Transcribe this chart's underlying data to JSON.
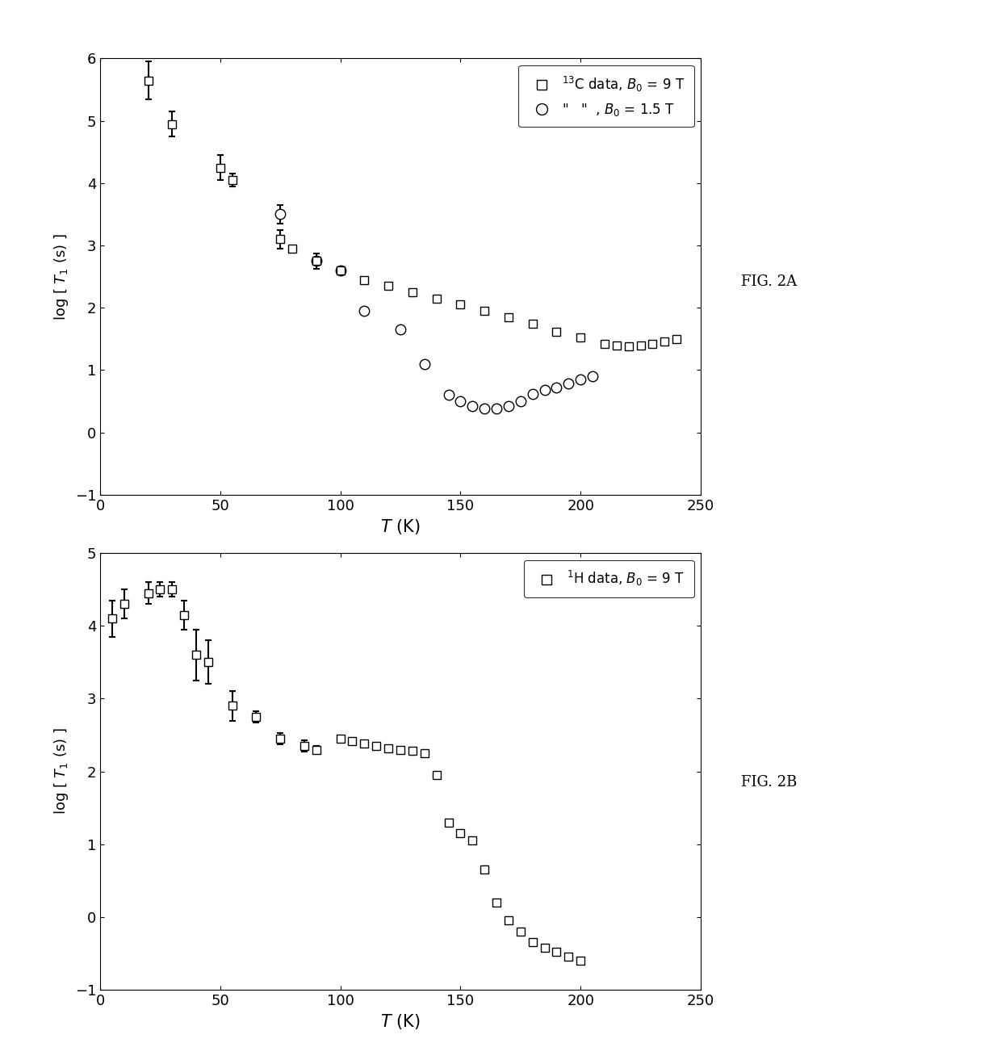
{
  "fig2A": {
    "xlabel": "$T$ (K)",
    "ylabel": "log [ $T_1$ (s) ]",
    "xlim": [
      0,
      250
    ],
    "ylim": [
      -1,
      6
    ],
    "yticks": [
      -1,
      0,
      1,
      2,
      3,
      4,
      5,
      6
    ],
    "xticks": [
      0,
      50,
      100,
      150,
      200,
      250
    ],
    "sq_x": [
      20,
      30,
      50,
      55,
      75,
      80,
      90,
      100,
      110,
      120,
      130,
      140,
      150,
      160,
      170,
      180,
      190,
      200,
      210,
      215,
      220,
      225,
      230,
      235,
      240
    ],
    "sq_y": [
      5.65,
      4.95,
      4.25,
      4.05,
      3.1,
      2.95,
      2.75,
      2.6,
      2.45,
      2.35,
      2.25,
      2.15,
      2.05,
      1.95,
      1.85,
      1.75,
      1.62,
      1.52,
      1.42,
      1.4,
      1.38,
      1.4,
      1.42,
      1.46,
      1.5
    ],
    "sq_yerr": [
      0.3,
      0.2,
      0.2,
      0.1,
      0.15,
      0.0,
      0.0,
      0.0,
      0.0,
      0.0,
      0.0,
      0.0,
      0.0,
      0.0,
      0.0,
      0.0,
      0.0,
      0.0,
      0.0,
      0.0,
      0.0,
      0.0,
      0.0,
      0.0,
      0.0
    ],
    "circ_x": [
      75,
      90,
      100,
      110,
      125,
      135,
      145,
      150,
      155,
      160,
      165,
      170,
      175,
      180,
      185,
      190,
      195,
      200,
      205
    ],
    "circ_y": [
      3.5,
      2.75,
      2.6,
      1.95,
      1.65,
      1.1,
      0.6,
      0.5,
      0.42,
      0.38,
      0.38,
      0.42,
      0.5,
      0.62,
      0.68,
      0.72,
      0.78,
      0.85,
      0.9
    ],
    "circ_yerr": [
      0.15,
      0.12,
      0.0,
      0.0,
      0.0,
      0.0,
      0.0,
      0.0,
      0.0,
      0.0,
      0.0,
      0.0,
      0.0,
      0.0,
      0.0,
      0.0,
      0.0,
      0.0,
      0.0
    ]
  },
  "fig2B": {
    "xlabel": "$T$ (K)",
    "ylabel": "log [ $T_1$ (s) ]",
    "xlim": [
      0,
      250
    ],
    "ylim": [
      -1,
      5
    ],
    "yticks": [
      -1,
      0,
      1,
      2,
      3,
      4,
      5
    ],
    "xticks": [
      0,
      50,
      100,
      150,
      200,
      250
    ],
    "sq_x": [
      5,
      10,
      20,
      25,
      30,
      35,
      40,
      45,
      55,
      65,
      75,
      85,
      90,
      100,
      105,
      110,
      115,
      120,
      125,
      130,
      135,
      140,
      145,
      150,
      155,
      160,
      165,
      170,
      175,
      180,
      185,
      190,
      195,
      200
    ],
    "sq_y": [
      4.1,
      4.3,
      4.45,
      4.5,
      4.5,
      4.15,
      3.6,
      3.5,
      2.9,
      2.75,
      2.45,
      2.35,
      2.3,
      2.45,
      2.42,
      2.38,
      2.35,
      2.32,
      2.3,
      2.28,
      2.25,
      1.95,
      1.3,
      1.15,
      1.05,
      0.65,
      0.2,
      -0.05,
      -0.2,
      -0.35,
      -0.42,
      -0.48,
      -0.55,
      -0.6
    ],
    "sq_yerr": [
      0.25,
      0.2,
      0.15,
      0.1,
      0.1,
      0.2,
      0.35,
      0.3,
      0.2,
      0.08,
      0.08,
      0.08,
      0.05,
      0.0,
      0.0,
      0.0,
      0.0,
      0.0,
      0.0,
      0.0,
      0.0,
      0.0,
      0.0,
      0.0,
      0.0,
      0.0,
      0.0,
      0.0,
      0.0,
      0.0,
      0.0,
      0.0,
      0.0,
      0.0
    ]
  },
  "marker_color": "#000000",
  "sq_marker": "s",
  "circ_marker": "o",
  "markersize": 7,
  "elinewidth": 1.5,
  "capsize": 3,
  "fig_label_fontsize": 13,
  "fig2A_label": "FIG. 2A",
  "fig2B_label": "FIG. 2B"
}
